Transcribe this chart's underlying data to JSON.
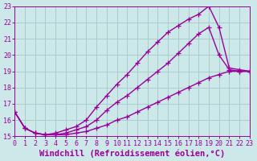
{
  "xlabel": "Windchill (Refroidissement éolien,°C)",
  "background_color": "#cce8e8",
  "grid_color": "#aacccc",
  "line_color": "#990099",
  "xlim": [
    0,
    23
  ],
  "ylim": [
    15,
    23
  ],
  "xticks": [
    0,
    1,
    2,
    3,
    4,
    5,
    6,
    7,
    8,
    9,
    10,
    11,
    12,
    13,
    14,
    15,
    16,
    17,
    18,
    19,
    20,
    21,
    22,
    23
  ],
  "yticks": [
    15,
    16,
    17,
    18,
    19,
    20,
    21,
    22,
    23
  ],
  "curve1_x": [
    0,
    1,
    2,
    3,
    4,
    5,
    6,
    7,
    8,
    9,
    10,
    11,
    12,
    13,
    14,
    15,
    16,
    17,
    18,
    19,
    20,
    21,
    22,
    23
  ],
  "curve1_y": [
    16.5,
    15.5,
    15.2,
    15.1,
    15.1,
    15.1,
    15.2,
    15.3,
    15.5,
    15.7,
    16.0,
    16.2,
    16.5,
    16.8,
    17.1,
    17.4,
    17.7,
    18.0,
    18.3,
    18.6,
    18.8,
    19.0,
    19.0,
    19.0
  ],
  "curve2_x": [
    0,
    1,
    2,
    3,
    4,
    5,
    6,
    7,
    8,
    9,
    10,
    11,
    12,
    13,
    14,
    15,
    16,
    17,
    18,
    19,
    20,
    21,
    22,
    23
  ],
  "curve2_y": [
    16.5,
    15.5,
    15.2,
    15.1,
    15.1,
    15.2,
    15.4,
    15.6,
    16.0,
    16.6,
    17.1,
    17.5,
    18.0,
    18.5,
    19.0,
    19.5,
    20.1,
    20.7,
    21.3,
    21.7,
    20.0,
    19.1,
    19.0,
    19.0
  ],
  "curve3_x": [
    0,
    1,
    2,
    3,
    4,
    5,
    6,
    7,
    8,
    9,
    10,
    11,
    12,
    13,
    14,
    15,
    16,
    17,
    18,
    19,
    20,
    21,
    22,
    23
  ],
  "curve3_y": [
    16.5,
    15.5,
    15.2,
    15.1,
    15.2,
    15.4,
    15.6,
    16.0,
    16.8,
    17.5,
    18.2,
    18.8,
    19.5,
    20.2,
    20.8,
    21.4,
    21.8,
    22.2,
    22.5,
    23.0,
    21.7,
    19.2,
    19.1,
    19.0
  ],
  "marker": "+",
  "markersize": 4,
  "linewidth": 1.0,
  "tick_fontsize": 6,
  "xlabel_fontsize": 7.5
}
